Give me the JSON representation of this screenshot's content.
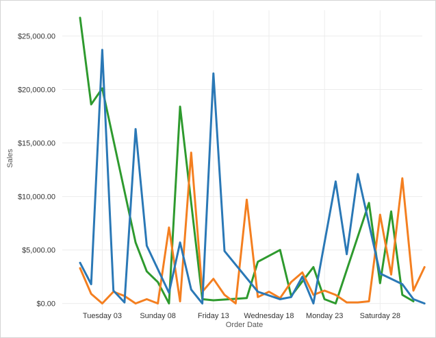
{
  "chart_data": {
    "type": "line",
    "xlabel": "Order Date",
    "ylabel": "Sales",
    "ylim": [
      -600,
      27400
    ],
    "xlim": [
      -0.6,
      31.8
    ],
    "y_ticks": [
      {
        "value": 0,
        "label": "$0.00"
      },
      {
        "value": 5000,
        "label": "$5,000.00"
      },
      {
        "value": 10000,
        "label": "$10,000.00"
      },
      {
        "value": 15000,
        "label": "$15,000.00"
      },
      {
        "value": 20000,
        "label": "$20,000.00"
      },
      {
        "value": 25000,
        "label": "$25,000.00"
      }
    ],
    "x_ticks": [
      {
        "value": 3,
        "label": "Tuesday 03"
      },
      {
        "value": 8,
        "label": "Sunday 08"
      },
      {
        "value": 13,
        "label": "Friday 13"
      },
      {
        "value": 18,
        "label": "Wednesday 18"
      },
      {
        "value": 23,
        "label": "Monday 23"
      },
      {
        "value": 28,
        "label": "Saturday 28"
      }
    ],
    "grid": true,
    "series": [
      {
        "color": "#2e9a2e",
        "points": [
          [
            1,
            26700
          ],
          [
            2,
            18600
          ],
          [
            3,
            20100
          ],
          [
            6,
            5700
          ],
          [
            7,
            3000
          ],
          [
            8,
            2000
          ],
          [
            9,
            0
          ],
          [
            10,
            18400
          ],
          [
            12,
            400
          ],
          [
            13,
            300
          ],
          [
            16,
            500
          ],
          [
            17,
            3900
          ],
          [
            19,
            5000
          ],
          [
            20,
            700
          ],
          [
            22,
            3400
          ],
          [
            23,
            400
          ],
          [
            24,
            0
          ],
          [
            27,
            9400
          ],
          [
            28,
            1900
          ],
          [
            29,
            8600
          ],
          [
            30,
            800
          ],
          [
            31,
            200
          ]
        ]
      },
      {
        "color": "#f47f20",
        "points": [
          [
            1,
            3300
          ],
          [
            2,
            900
          ],
          [
            3,
            0
          ],
          [
            4,
            1100
          ],
          [
            5,
            700
          ],
          [
            6,
            0
          ],
          [
            7,
            400
          ],
          [
            8,
            0
          ],
          [
            9,
            7100
          ],
          [
            10,
            200
          ],
          [
            11,
            14100
          ],
          [
            12,
            1100
          ],
          [
            13,
            2300
          ],
          [
            14,
            800
          ],
          [
            15,
            0
          ],
          [
            16,
            9700
          ],
          [
            17,
            600
          ],
          [
            18,
            1100
          ],
          [
            19,
            500
          ],
          [
            20,
            2000
          ],
          [
            21,
            2900
          ],
          [
            22,
            800
          ],
          [
            23,
            1200
          ],
          [
            24,
            800
          ],
          [
            25,
            100
          ],
          [
            26,
            100
          ],
          [
            27,
            200
          ],
          [
            28,
            8300
          ],
          [
            29,
            2700
          ],
          [
            30,
            11700
          ],
          [
            31,
            1200
          ],
          [
            32,
            3400
          ]
        ]
      },
      {
        "color": "#2a78b6",
        "points": [
          [
            1,
            3800
          ],
          [
            2,
            1800
          ],
          [
            3,
            23700
          ],
          [
            4,
            1200
          ],
          [
            5,
            100
          ],
          [
            6,
            16300
          ],
          [
            7,
            5400
          ],
          [
            9,
            1000
          ],
          [
            10,
            5700
          ],
          [
            11,
            1300
          ],
          [
            12,
            0
          ],
          [
            13,
            21500
          ],
          [
            14,
            4900
          ],
          [
            17,
            1100
          ],
          [
            19,
            400
          ],
          [
            20,
            600
          ],
          [
            21,
            2500
          ],
          [
            22,
            0
          ],
          [
            24,
            11400
          ],
          [
            25,
            4600
          ],
          [
            26,
            12100
          ],
          [
            28,
            2800
          ],
          [
            30,
            1800
          ],
          [
            31,
            400
          ],
          [
            32,
            0
          ]
        ]
      }
    ]
  }
}
